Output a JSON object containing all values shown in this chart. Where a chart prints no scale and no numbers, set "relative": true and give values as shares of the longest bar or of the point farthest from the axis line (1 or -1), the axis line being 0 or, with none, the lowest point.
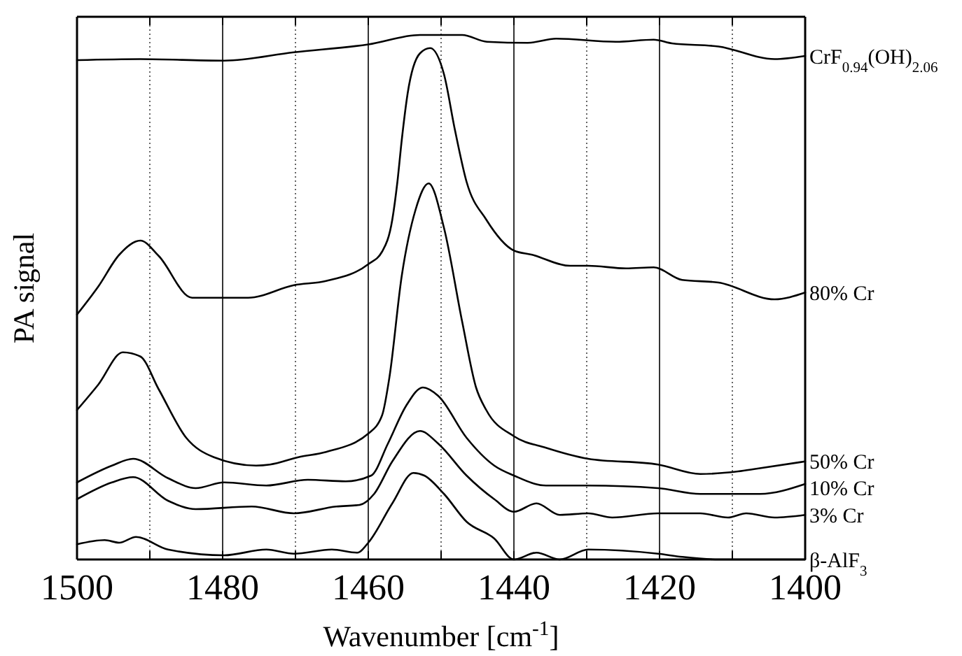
{
  "chart_data": {
    "type": "line",
    "relative": true,
    "xlabel": "Wavenumber [cm$^{-1}$]",
    "ylabel": "PA signal",
    "xlim": [
      1500,
      1400
    ],
    "xticks": [
      1500,
      {
        "value": 1490,
        "label": null
      },
      1480,
      {
        "value": 1470,
        "label": null
      },
      1460,
      {
        "value": 1450,
        "label": null
      },
      1440,
      {
        "value": 1430,
        "label": null
      },
      1420,
      {
        "value": 1410,
        "label": null
      },
      1400
    ],
    "grid": "x",
    "tick_labels": "x",
    "marker": "none",
    "line_style": "solid",
    "series": [
      {
        "name": "CrF$_{0.94}$(OH)$_{2.06}$",
        "color": "#000000",
        "x": [
          1500,
          1491.3,
          1479.8,
          1470.2,
          1460,
          1452.9,
          1447.1,
          1443.7,
          1438.1,
          1434.2,
          1426,
          1420.8,
          1418.3,
          1411.9,
          1404.2,
          1400
        ],
        "values": [
          0.952,
          0.954,
          0.951,
          0.967,
          0.982,
          1,
          1,
          0.987,
          0.985,
          0.993,
          0.987,
          0.991,
          0.984,
          0.978,
          0.954,
          0.96
        ]
      },
      {
        "name": "80% Cr",
        "color": "#000000",
        "x": [
          1500,
          1497.1,
          1494.2,
          1491.3,
          1488.8,
          1484.2,
          1476.5,
          1470.2,
          1465.8,
          1460,
          1458.1,
          1456.7,
          1456,
          1455.4,
          1454.6,
          1452.9,
          1451.5,
          1449.6,
          1448.1,
          1446.5,
          1443.8,
          1440,
          1437.5,
          1432.3,
          1429.8,
          1424.6,
          1420.8,
          1416.9,
          1411.9,
          1404.2,
          1400
        ],
        "values": [
          0.467,
          0.52,
          0.581,
          0.608,
          0.579,
          0.499,
          0.499,
          0.523,
          0.531,
          0.563,
          0.587,
          0.648,
          0.72,
          0.8,
          0.888,
          0.965,
          0.975,
          0.925,
          0.819,
          0.72,
          0.648,
          0.589,
          0.581,
          0.56,
          0.56,
          0.555,
          0.557,
          0.533,
          0.528,
          0.496,
          0.509
        ]
      },
      {
        "name": "50% Cr",
        "color": "#000000",
        "x": [
          1500,
          1497.1,
          1493.7,
          1491.3,
          1488.8,
          1485,
          1481.2,
          1475.4,
          1473.5,
          1469.6,
          1465.8,
          1460,
          1458.1,
          1457.1,
          1455.4,
          1453.5,
          1451.7,
          1449.6,
          1447.1,
          1445.2,
          1443.8,
          1440,
          1435.6,
          1429.8,
          1420.2,
          1414.4,
          1409.2,
          1406.7,
          1400
        ],
        "values": [
          0.285,
          0.333,
          0.395,
          0.387,
          0.325,
          0.232,
          0.195,
          0.179,
          0.181,
          0.195,
          0.205,
          0.24,
          0.275,
          0.347,
          0.541,
          0.667,
          0.717,
          0.632,
          0.453,
          0.328,
          0.285,
          0.235,
          0.213,
          0.192,
          0.181,
          0.163,
          0.168,
          0.173,
          0.187
        ]
      },
      {
        "name": "10% Cr",
        "color": "#000000",
        "x": [
          1500,
          1495.2,
          1492.3,
          1487.5,
          1483.7,
          1479.8,
          1474,
          1468.3,
          1463.1,
          1459.6,
          1457.3,
          1454.8,
          1452.5,
          1450.4,
          1446.5,
          1442.7,
          1440,
          1435.6,
          1429.8,
          1420.2,
          1414.4,
          1406.2,
          1400
        ],
        "values": [
          0.147,
          0.179,
          0.192,
          0.155,
          0.136,
          0.147,
          0.141,
          0.152,
          0.149,
          0.16,
          0.221,
          0.293,
          0.328,
          0.312,
          0.232,
          0.179,
          0.16,
          0.141,
          0.141,
          0.136,
          0.125,
          0.125,
          0.144
        ]
      },
      {
        "name": "3% Cr",
        "color": "#000000",
        "x": [
          1500,
          1495.2,
          1492.3,
          1487.5,
          1483.7,
          1476,
          1470.2,
          1464.4,
          1461.2,
          1459.2,
          1456.7,
          1452.9,
          1450.4,
          1446.5,
          1442.7,
          1440,
          1436.9,
          1433.7,
          1429.8,
          1426.5,
          1420.2,
          1414.4,
          1410.6,
          1408.1,
          1404.2,
          1400
        ],
        "values": [
          0.115,
          0.147,
          0.157,
          0.112,
          0.096,
          0.101,
          0.088,
          0.101,
          0.104,
          0.125,
          0.187,
          0.245,
          0.221,
          0.16,
          0.115,
          0.091,
          0.107,
          0.085,
          0.088,
          0.08,
          0.088,
          0.088,
          0.08,
          0.088,
          0.08,
          0.085
        ]
      },
      {
        "name": "β-AlF$_{3}$",
        "color": "#000000",
        "x": [
          1500,
          1496.2,
          1494.2,
          1491.9,
          1487.5,
          1479.8,
          1474,
          1470.2,
          1465,
          1461.5,
          1460,
          1456.7,
          1453.8,
          1452.3,
          1449.6,
          1446.5,
          1442.7,
          1440,
          1436.9,
          1433.7,
          1429.8,
          1420.2,
          1416.9,
          1411.9,
          1400
        ],
        "values": [
          0.029,
          0.037,
          0.032,
          0.043,
          0.019,
          0.008,
          0.019,
          0.011,
          0.019,
          0.013,
          0.032,
          0.107,
          0.165,
          0.16,
          0.125,
          0.072,
          0.04,
          0,
          0.013,
          0,
          0.019,
          0.011,
          0.005,
          0,
          0
        ]
      }
    ]
  }
}
